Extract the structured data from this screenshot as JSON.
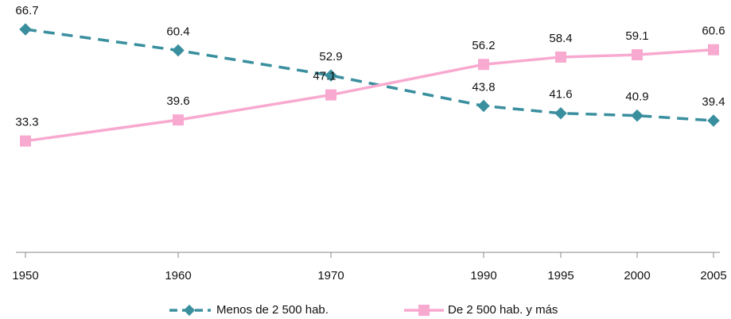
{
  "chart_data": {
    "type": "line",
    "categories": [
      "1950",
      "1960",
      "1970",
      "1990",
      "1995",
      "2000",
      "2005"
    ],
    "ylim": [
      0,
      75
    ],
    "series": [
      {
        "name": "Menos de 2 500 hab.",
        "color": "#3a8f9f",
        "values": [
          66.7,
          60.4,
          52.9,
          43.8,
          41.6,
          40.9,
          39.4
        ]
      },
      {
        "name": "De 2 500 hab. y más",
        "color": "#f8a9d0",
        "values": [
          33.3,
          39.6,
          47.1,
          56.2,
          58.4,
          59.1,
          60.6
        ]
      }
    ]
  }
}
